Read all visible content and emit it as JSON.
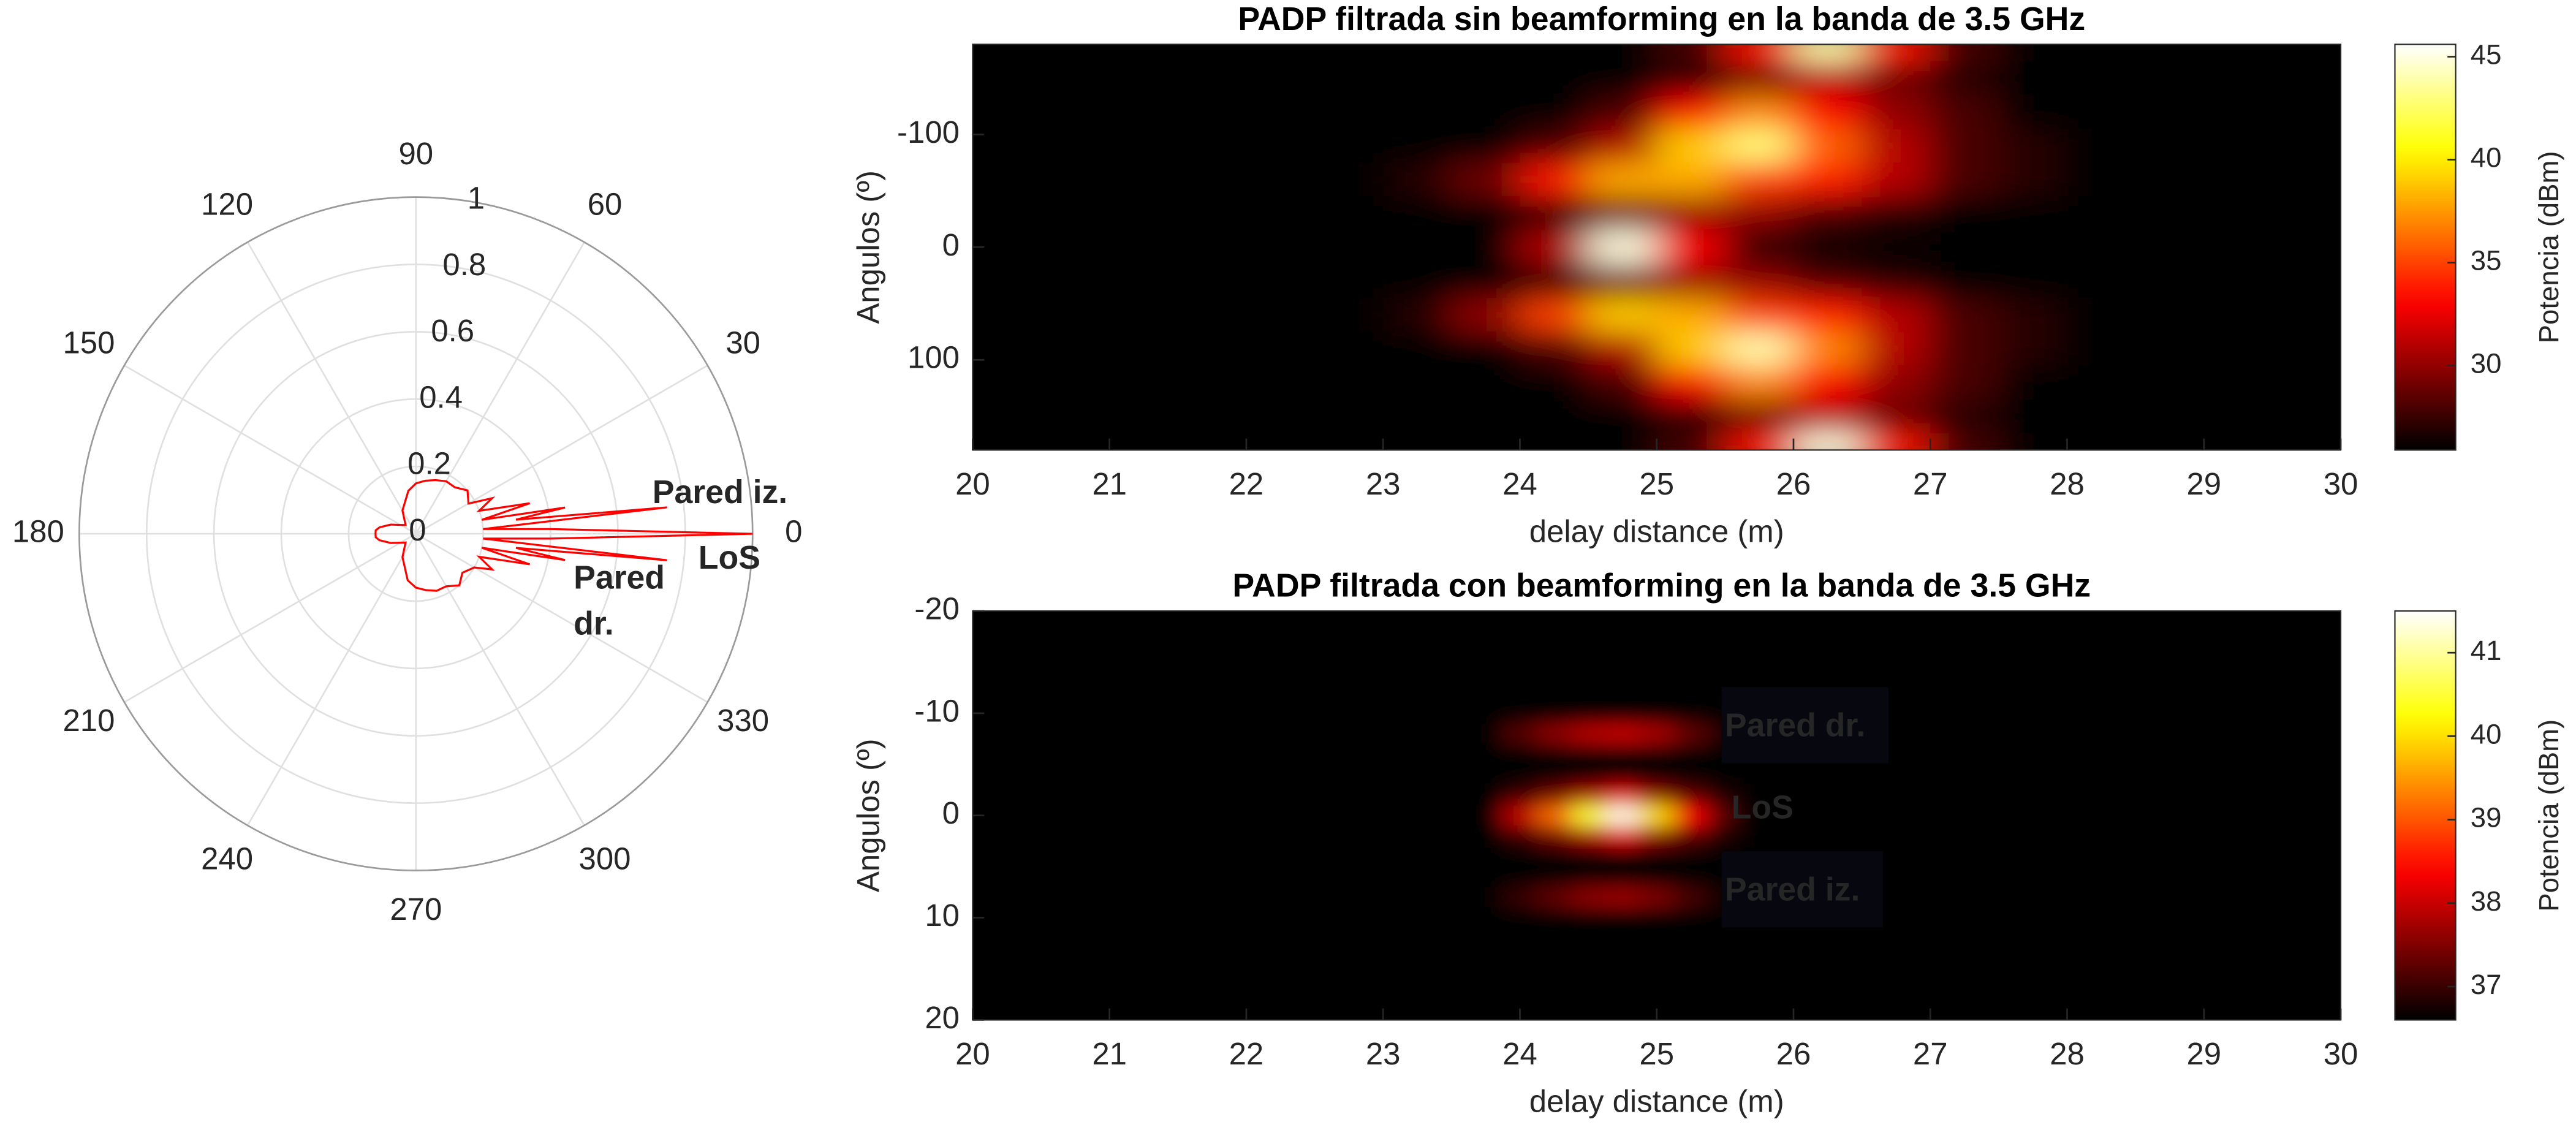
{
  "chart_data": [
    {
      "type": "polar",
      "rlim": [
        0,
        1
      ],
      "rticks": [
        0,
        0.2,
        0.4,
        0.6,
        0.8,
        1
      ],
      "thetaticks": [
        0,
        30,
        60,
        90,
        120,
        150,
        180,
        210,
        240,
        270,
        300,
        330
      ],
      "grid": true,
      "series": [
        {
          "color": "#ff0000",
          "x": [
            0,
            2,
            4,
            6,
            8,
            10,
            12,
            15,
            20,
            25,
            30,
            40,
            50,
            60,
            70,
            80,
            90,
            100,
            120,
            140,
            160,
            170,
            175,
            180,
            185,
            190,
            200,
            220,
            240,
            260,
            270,
            280,
            290,
            300,
            310,
            320,
            330,
            335,
            340,
            345,
            348,
            350,
            352,
            354,
            356,
            358,
            360
          ],
          "values": [
            1.0,
            0.4,
            0.2,
            0.75,
            0.3,
            0.45,
            0.2,
            0.35,
            0.2,
            0.25,
            0.18,
            0.2,
            0.18,
            0.18,
            0.17,
            0.16,
            0.15,
            0.13,
            0.08,
            0.04,
            0.08,
            0.11,
            0.12,
            0.12,
            0.12,
            0.11,
            0.08,
            0.04,
            0.08,
            0.14,
            0.16,
            0.17,
            0.18,
            0.18,
            0.2,
            0.18,
            0.2,
            0.25,
            0.2,
            0.35,
            0.2,
            0.45,
            0.3,
            0.75,
            0.2,
            0.4,
            1.0
          ]
        }
      ],
      "annotations": [
        {
          "text": [
            "Pared iz."
          ],
          "color": "#4040c8"
        },
        {
          "text": [
            "LoS"
          ],
          "color": "#ff00ff"
        },
        {
          "text": [
            "Pared",
            "dr."
          ],
          "color": "#4040c8"
        }
      ]
    },
    {
      "type": "heatmap",
      "title": "PADP filtrada sin beamforming en la banda de 3.5 GHz",
      "xlabel": "delay distance (m)",
      "ylabel": "Angulos (º)",
      "colorbar_label": "Potencia (dBm)",
      "colormap": "hot",
      "y_direction": "reverse",
      "xlim": [
        20,
        30
      ],
      "xticks": [
        20,
        21,
        22,
        23,
        24,
        25,
        26,
        27,
        28,
        29,
        30
      ],
      "ylim": [
        -180,
        180
      ],
      "yticks": [
        -100,
        0,
        100
      ],
      "clim": [
        25.9,
        45.6
      ],
      "cticks": [
        30,
        35,
        40,
        45
      ],
      "x": [
        23.25,
        23.75,
        24.25,
        24.75,
        25.25,
        25.75,
        26.25,
        26.75,
        27.25,
        27.75
      ],
      "y": [
        -180,
        -150,
        -120,
        -90,
        -60,
        -30,
        0,
        30,
        60,
        90,
        120,
        150,
        180
      ],
      "z": [
        [
          26,
          26,
          26,
          26,
          28,
          34,
          44,
          34,
          28,
          26
        ],
        [
          26,
          26,
          26,
          26,
          27,
          29,
          31,
          29,
          27,
          26
        ],
        [
          26,
          26,
          26,
          28,
          33,
          37,
          33,
          30,
          28,
          26
        ],
        [
          26,
          26,
          28,
          31,
          39,
          43,
          36,
          31,
          28,
          27
        ],
        [
          27,
          29,
          34,
          38,
          38,
          35,
          34,
          31,
          28,
          27
        ],
        [
          26,
          26,
          27,
          29,
          30,
          30,
          28,
          27,
          26,
          26
        ],
        [
          26,
          26,
          31,
          45,
          33,
          27,
          26,
          26,
          26,
          26
        ],
        [
          26,
          26,
          27,
          29,
          30,
          30,
          28,
          27,
          26,
          26
        ],
        [
          27,
          30,
          35,
          39,
          38,
          35,
          34,
          31,
          28,
          27
        ],
        [
          26,
          26,
          28,
          31,
          39,
          44,
          37,
          31,
          28,
          27
        ],
        [
          26,
          26,
          26,
          28,
          33,
          37,
          33,
          30,
          28,
          26
        ],
        [
          26,
          26,
          26,
          26,
          27,
          29,
          31,
          29,
          27,
          26
        ],
        [
          26,
          26,
          26,
          26,
          28,
          34,
          45,
          34,
          28,
          26
        ]
      ]
    },
    {
      "type": "heatmap",
      "title": "PADP filtrada con beamforming en la banda de 3.5 GHz",
      "xlabel": "delay distance (m)",
      "ylabel": "Angulos (º)",
      "colorbar_label": "Potencia (dBm)",
      "colormap": "hot",
      "y_direction": "reverse",
      "xlim": [
        20,
        30
      ],
      "xticks": [
        20,
        21,
        22,
        23,
        24,
        25,
        26,
        27,
        28,
        29,
        30
      ],
      "ylim": [
        -20,
        20
      ],
      "yticks": [
        -20,
        -10,
        0,
        10,
        20
      ],
      "clim": [
        36.6,
        41.5
      ],
      "cticks": [
        37,
        38,
        39,
        40,
        41
      ],
      "x": [
        23.75,
        24,
        24.25,
        24.5,
        24.75,
        25,
        25.25,
        25.5
      ],
      "y": [
        -10,
        -8,
        -6,
        -4,
        -2,
        0,
        2,
        4,
        6,
        8,
        10
      ],
      "z": [
        [
          36.6,
          36.6,
          36.6,
          36.6,
          36.6,
          36.6,
          36.6,
          36.6
        ],
        [
          36.6,
          37.2,
          37.6,
          37.9,
          38,
          37.8,
          37.3,
          36.8
        ],
        [
          36.6,
          36.6,
          36.6,
          36.6,
          36.6,
          36.6,
          36.6,
          36.6
        ],
        [
          36.6,
          36.6,
          36.6,
          36.6,
          36.6,
          36.6,
          36.6,
          36.6
        ],
        [
          36.6,
          37,
          37.4,
          37.8,
          38.2,
          37.6,
          37.2,
          36.8
        ],
        [
          36.6,
          38,
          39.2,
          40.5,
          41.4,
          40,
          38.4,
          37.2
        ],
        [
          36.6,
          37,
          37.4,
          37.8,
          38.2,
          37.6,
          37.2,
          36.8
        ],
        [
          36.6,
          36.6,
          36.6,
          36.6,
          36.6,
          36.6,
          36.6,
          36.6
        ],
        [
          36.6,
          36.6,
          36.6,
          36.6,
          36.6,
          36.6,
          36.6,
          36.6
        ],
        [
          36.6,
          37,
          37.3,
          37.6,
          37.7,
          37.5,
          37.1,
          36.7
        ],
        [
          36.6,
          36.6,
          36.6,
          36.6,
          36.6,
          36.6,
          36.6,
          36.6
        ]
      ],
      "annotations": [
        {
          "text": [
            "Pared dr."
          ],
          "color": "#4a4ad0"
        },
        {
          "text": [
            "LoS"
          ],
          "color": "#ff00ff"
        },
        {
          "text": [
            "Pared iz."
          ],
          "color": "#4a4ad0"
        }
      ]
    }
  ]
}
